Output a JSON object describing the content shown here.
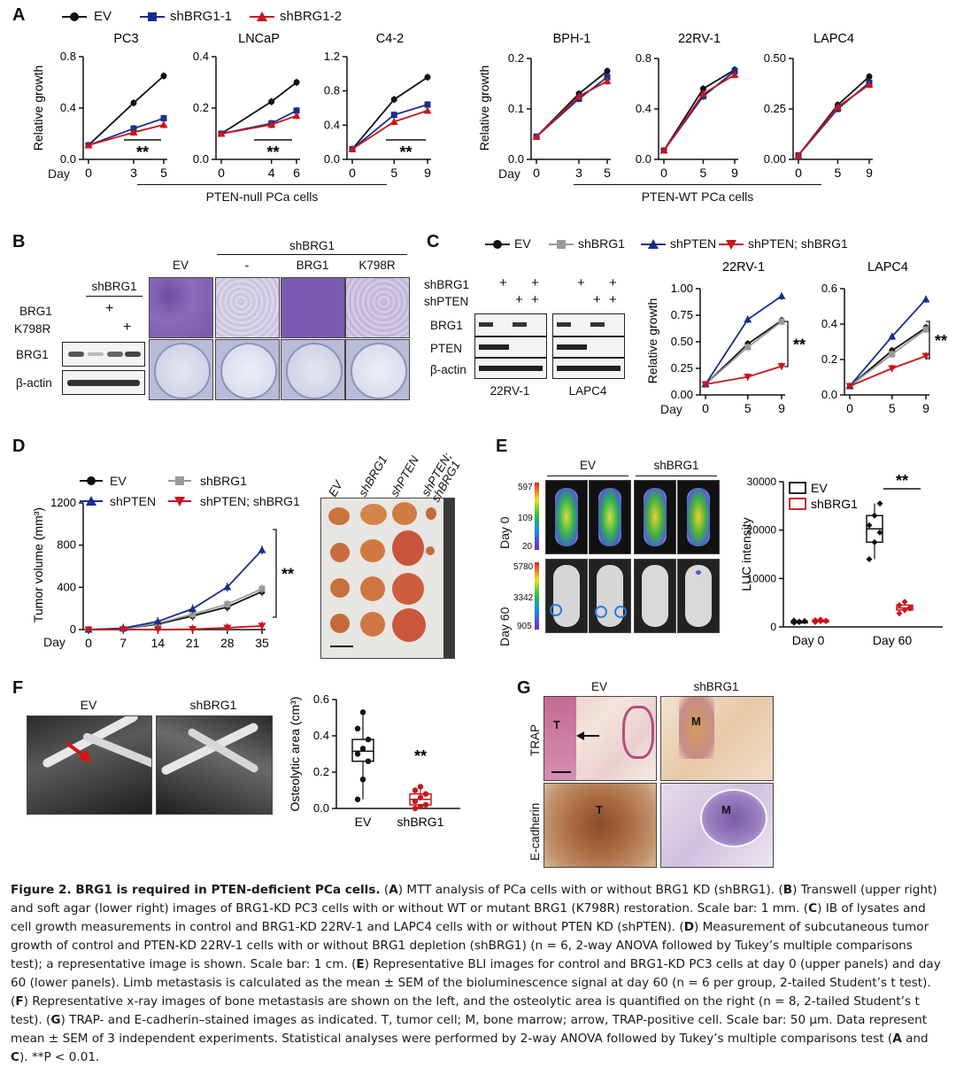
{
  "figure": {
    "panel_letters": [
      "A",
      "B",
      "C",
      "D",
      "E",
      "F",
      "G"
    ],
    "colors": {
      "EV": "#111111",
      "shBRG1": "#1a2d8c",
      "shBRG1_2": "#c8161d",
      "shBRG1_gray": "#9a9a9a",
      "shPTEN": "#1a2d8c",
      "shPTEN_shBRG1": "#c8161d"
    }
  },
  "panelA": {
    "legend": [
      "EV",
      "shBRG1-1",
      "shBRG1-2"
    ],
    "ylabel": "Relative growth",
    "day_label": "Day",
    "group_null": "PTEN-null PCa cells",
    "group_wt": "PTEN-WT PCa cells",
    "sig": "**"
  },
  "panelB": {
    "shBRG1_header": "shBRG1",
    "col_labels": [
      "EV",
      "-",
      "BRG1",
      "K798R"
    ],
    "blot_header": "shBRG1",
    "row_labels": [
      "BRG1",
      "K798R"
    ],
    "plus": "+",
    "bands": [
      "BRG1",
      "β-actin"
    ]
  },
  "panelC": {
    "legend": [
      "EV",
      "shBRG1",
      "shPTEN",
      "shPTEN; shBRG1"
    ],
    "rows": [
      "shBRG1",
      "shPTEN"
    ],
    "bands": [
      "BRG1",
      "PTEN",
      "β-actin"
    ],
    "cells": [
      "22RV-1",
      "LAPC4"
    ],
    "plus": "+",
    "ylabel": "Relative growth",
    "day_label": "Day",
    "sig": "**"
  },
  "panelD": {
    "legend": [
      "EV",
      "shBRG1",
      "shPTEN",
      "shPTEN; shBRG1"
    ],
    "ylabel": "Tumor volume (mm³)",
    "day_label": "Day",
    "photo_labels": [
      "EV",
      "shBRG1",
      "shPTEN",
      "shPTEN;\nshBRG1"
    ],
    "sig": "**"
  },
  "panelE": {
    "col_groups": [
      "EV",
      "shBRG1"
    ],
    "rows": [
      "Day 0",
      "Day 60"
    ],
    "scale_day0": [
      "597",
      "109",
      "20"
    ],
    "scale_day60": [
      "5780",
      "3342",
      "905"
    ],
    "legend": [
      "EV",
      "shBRG1"
    ],
    "ylabel": "LUC intensity",
    "sig": "**"
  },
  "panelF": {
    "labels": [
      "EV",
      "shBRG1"
    ],
    "ylabel": "Osteolytic area (cm³)",
    "sig": "**"
  },
  "panelG": {
    "cols": [
      "EV",
      "shBRG1"
    ],
    "rows": [
      "TRAP",
      "E-cadherin"
    ],
    "marks": [
      "T",
      "M",
      "T",
      "M"
    ]
  },
  "chart_data": [
    {
      "type": "line",
      "title": "PC3",
      "x": [
        0,
        3,
        5
      ],
      "xlabel": "Day",
      "ylabel": "Relative growth",
      "ylim": [
        0,
        0.8
      ],
      "yticks": [
        "0.0",
        "0.4",
        "0.8"
      ],
      "series": [
        {
          "name": "EV",
          "values": [
            0.11,
            0.44,
            0.65
          ]
        },
        {
          "name": "shBRG1-1",
          "values": [
            0.11,
            0.24,
            0.32
          ]
        },
        {
          "name": "shBRG1-2",
          "values": [
            0.11,
            0.21,
            0.27
          ]
        }
      ]
    },
    {
      "type": "line",
      "title": "LNCaP",
      "x": [
        0,
        4,
        6
      ],
      "xlabel": "",
      "ylabel": "",
      "ylim": [
        0,
        0.4
      ],
      "yticks": [
        "0.0",
        "0.2",
        "0.4"
      ],
      "series": [
        {
          "name": "EV",
          "values": [
            0.1,
            0.225,
            0.3
          ]
        },
        {
          "name": "shBRG1-1",
          "values": [
            0.1,
            0.14,
            0.19
          ]
        },
        {
          "name": "shBRG1-2",
          "values": [
            0.1,
            0.135,
            0.17
          ]
        }
      ]
    },
    {
      "type": "line",
      "title": "C4-2",
      "x": [
        0,
        5,
        9
      ],
      "xlabel": "",
      "ylabel": "",
      "ylim": [
        0,
        1.2
      ],
      "yticks": [
        "0.0",
        "0.4",
        "0.8",
        "1.2"
      ],
      "series": [
        {
          "name": "EV",
          "values": [
            0.12,
            0.7,
            0.96
          ]
        },
        {
          "name": "shBRG1-1",
          "values": [
            0.12,
            0.52,
            0.64
          ]
        },
        {
          "name": "shBRG1-2",
          "values": [
            0.12,
            0.44,
            0.57
          ]
        }
      ]
    },
    {
      "type": "line",
      "title": "BPH-1",
      "x": [
        0,
        3,
        5
      ],
      "xlabel": "Day",
      "ylabel": "Relative growth",
      "ylim": [
        0,
        0.2
      ],
      "yticks": [
        "0.0",
        "0.1",
        "0.2"
      ],
      "series": [
        {
          "name": "EV",
          "values": [
            0.045,
            0.13,
            0.175
          ]
        },
        {
          "name": "shBRG1-1",
          "values": [
            0.045,
            0.12,
            0.163
          ]
        },
        {
          "name": "shBRG1-2",
          "values": [
            0.045,
            0.125,
            0.155
          ]
        }
      ]
    },
    {
      "type": "line",
      "title": "22RV-1",
      "x": [
        0,
        5,
        9
      ],
      "xlabel": "",
      "ylabel": "",
      "ylim": [
        0,
        0.8
      ],
      "yticks": [
        "0.0",
        "0.4",
        "0.8"
      ],
      "series": [
        {
          "name": "EV",
          "values": [
            0.07,
            0.56,
            0.71
          ]
        },
        {
          "name": "shBRG1-1",
          "values": [
            0.07,
            0.5,
            0.7
          ]
        },
        {
          "name": "shBRG1-2",
          "values": [
            0.07,
            0.52,
            0.67
          ]
        }
      ]
    },
    {
      "type": "line",
      "title": "LAPC4",
      "x": [
        0,
        5,
        9
      ],
      "xlabel": "",
      "ylabel": "",
      "ylim": [
        0,
        0.5
      ],
      "yticks": [
        "0.00",
        "0.25",
        "0.50"
      ],
      "series": [
        {
          "name": "EV",
          "values": [
            0.02,
            0.27,
            0.41
          ]
        },
        {
          "name": "shBRG1-1",
          "values": [
            0.02,
            0.25,
            0.38
          ]
        },
        {
          "name": "shBRG1-2",
          "values": [
            0.02,
            0.26,
            0.37
          ]
        }
      ]
    },
    {
      "type": "line",
      "title": "22RV-1",
      "x": [
        0,
        5,
        9
      ],
      "xlabel": "Day",
      "ylabel": "Relative growth",
      "ylim": [
        0,
        1.0
      ],
      "yticks": [
        "0.00",
        "0.25",
        "0.50",
        "0.75",
        "1.00"
      ],
      "series": [
        {
          "name": "EV",
          "values": [
            0.1,
            0.48,
            0.7
          ]
        },
        {
          "name": "shBRG1",
          "values": [
            0.1,
            0.45,
            0.69
          ]
        },
        {
          "name": "shPTEN",
          "values": [
            0.1,
            0.71,
            0.93
          ]
        },
        {
          "name": "shPTEN; shBRG1",
          "values": [
            0.1,
            0.17,
            0.27
          ]
        }
      ]
    },
    {
      "type": "line",
      "title": "LAPC4",
      "x": [
        0,
        5,
        9
      ],
      "xlabel": "",
      "ylabel": "",
      "ylim": [
        0,
        0.6
      ],
      "yticks": [
        "0.0",
        "0.2",
        "0.4",
        "0.6"
      ],
      "series": [
        {
          "name": "EV",
          "values": [
            0.05,
            0.25,
            0.38
          ]
        },
        {
          "name": "shBRG1",
          "values": [
            0.05,
            0.23,
            0.37
          ]
        },
        {
          "name": "shPTEN",
          "values": [
            0.05,
            0.33,
            0.54
          ]
        },
        {
          "name": "shPTEN; shBRG1",
          "values": [
            0.05,
            0.15,
            0.22
          ]
        }
      ]
    },
    {
      "type": "line",
      "title": "",
      "x": [
        0,
        7,
        14,
        21,
        28,
        35
      ],
      "xlabel": "Day",
      "ylabel": "Tumor volume (mm³)",
      "ylim": [
        0,
        1400
      ],
      "yticks": [
        "0",
        "400",
        "800",
        "1200"
      ],
      "series": [
        {
          "name": "EV",
          "values": [
            0,
            10,
            60,
            150,
            250,
            420
          ]
        },
        {
          "name": "shBRG1",
          "values": [
            0,
            10,
            70,
            170,
            280,
            450
          ]
        },
        {
          "name": "shPTEN",
          "values": [
            0,
            15,
            90,
            230,
            470,
            880
          ]
        },
        {
          "name": "shPTEN; shBRG1",
          "values": [
            0,
            0,
            0,
            5,
            20,
            40
          ]
        }
      ]
    },
    {
      "type": "box",
      "title": "",
      "categories": [
        "Day 0",
        "Day 60"
      ],
      "ylabel": "LUC intensity",
      "ylim": [
        0,
        30000
      ],
      "yticks": [
        "0",
        "10000",
        "20000",
        "30000"
      ],
      "series": [
        {
          "name": "EV",
          "values": [
            [
              900,
              1100,
              1200,
              1300,
              1000,
              1200
            ],
            [
              14000,
              17500,
              19500,
              21000,
              23000,
              25500
            ]
          ]
        },
        {
          "name": "shBRG1",
          "values": [
            [
              1000,
              1200,
              1300,
              1400,
              1500,
              1200
            ],
            [
              2800,
              3500,
              4000,
              4500,
              5200,
              3800
            ]
          ]
        }
      ]
    },
    {
      "type": "box",
      "title": "",
      "categories": [
        "EV",
        "shBRG1"
      ],
      "ylabel": "Osteolytic area (cm³)",
      "ylim": [
        0,
        0.6
      ],
      "yticks": [
        "0.0",
        "0.2",
        "0.4",
        "0.6"
      ],
      "series": [
        {
          "name": "EV",
          "values": [
            0.05,
            0.16,
            0.26,
            0.3,
            0.33,
            0.38,
            0.44,
            0.53
          ]
        },
        {
          "name": "shBRG1",
          "values": [
            0.0,
            0.01,
            0.02,
            0.04,
            0.06,
            0.08,
            0.1,
            0.12
          ]
        }
      ]
    }
  ],
  "caption": [
    {
      "b": "Figure 2. BRG1 is required in PTEN-deficient PCa cells.",
      "t": " ("
    },
    {
      "b": "A",
      "t": ") MTT analysis of PCa cells with or without BRG1 KD (shBRG1). ("
    },
    {
      "b": "B",
      "t": ") Transwell (upper right) and soft agar (lower right) images of BRG1-KD PC3 cells with or without WT or mutant BRG1 (K798R) restoration. Scale bar: 1 mm. ("
    },
    {
      "b": "C",
      "t": ") IB of lysates and cell growth measurements in control and BRG1-KD 22RV-1 and LAPC4 cells with or without PTEN KD (shPTEN). ("
    },
    {
      "b": "D",
      "t": ") Measurement of subcutaneous tumor growth of control and PTEN-KD 22RV-1 cells with or without BRG1 depletion (shBRG1) (n = 6, 2-way ANOVA followed by Tukey’s multiple comparisons test); a representative image is shown. Scale bar: 1 cm. ("
    },
    {
      "b": "E",
      "t": ") Representative BLI images for control and BRG1-KD PC3 cells at day 0 (upper panels) and day 60 (lower panels). Limb metastasis is calculated as the mean ± SEM of the bioluminescence signal at day 60 (n = 6 per group, 2-tailed Student’s t test). ("
    },
    {
      "b": "F",
      "t": ") Representative x-ray images of bone metastasis are shown on the left, and the osteolytic area is quantified on the right (n = 8, 2-tailed Student’s t test). ("
    },
    {
      "b": "G",
      "t": ") TRAP- and E-cadherin–stained images as indicated. T, tumor cell; M, bone marrow; arrow, TRAP-positive cell. Scale bar: 50 μm. Data represent mean ± SEM of 3 independent experiments. Statistical analyses were performed by 2-way ANOVA followed by Tukey’s multiple comparisons test ("
    },
    {
      "b": "A",
      "t": " and "
    },
    {
      "b": "C",
      "t": "). **P < 0.01."
    }
  ]
}
